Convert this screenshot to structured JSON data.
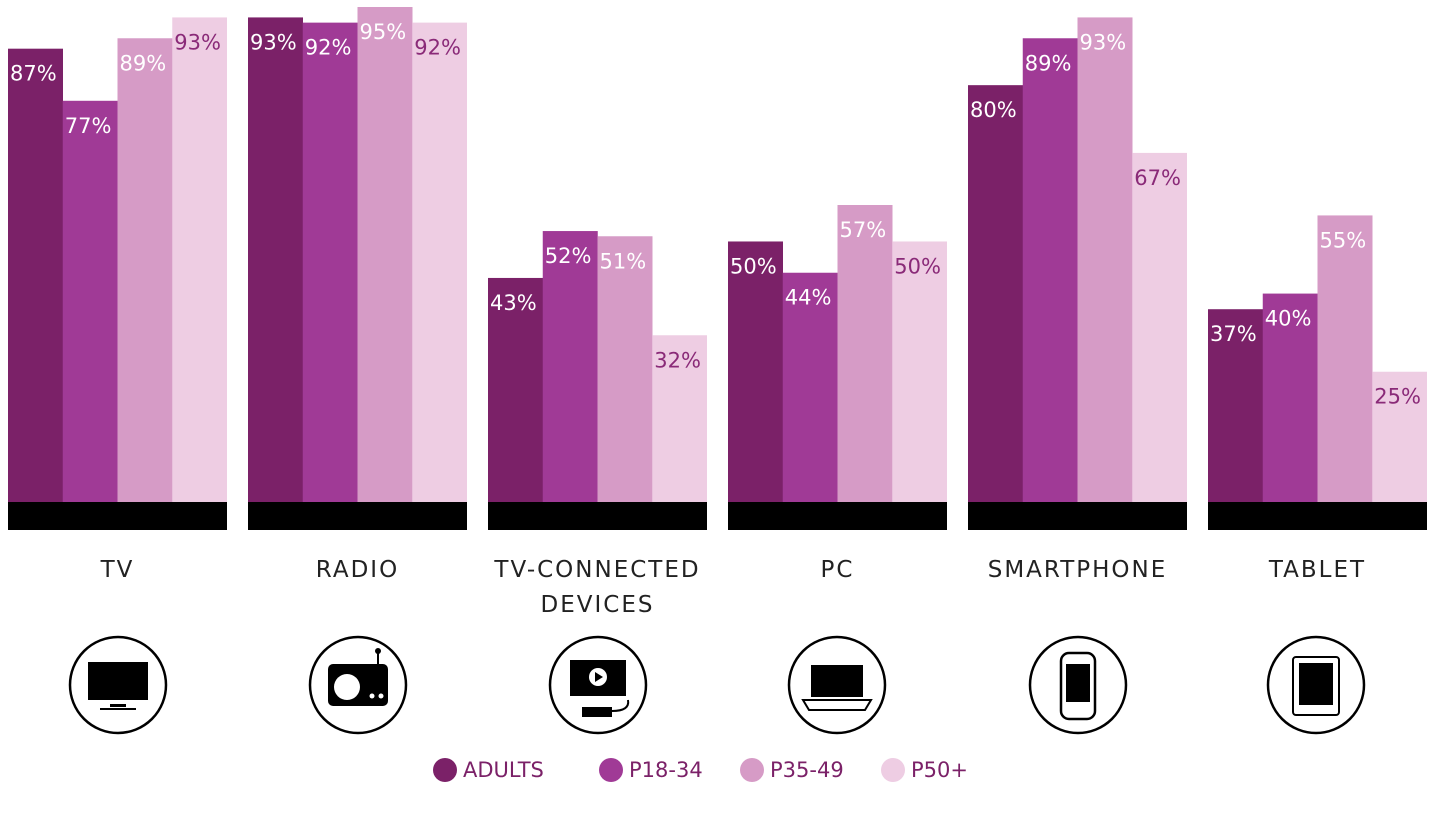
{
  "chart_data": {
    "type": "bar",
    "categories": [
      "TV",
      "RADIO",
      "TV-CONNECTED DEVICES",
      "PC",
      "SMARTPHONE",
      "TABLET"
    ],
    "series": [
      {
        "name": "ADULTS",
        "color": "#7b2168",
        "values": [
          87,
          93,
          43,
          50,
          80,
          37
        ],
        "value_labels": [
          "87%",
          "93%",
          "43%",
          "50%",
          "80%",
          "37%"
        ]
      },
      {
        "name": "P18-34",
        "color": "#a03a96",
        "values": [
          77,
          92,
          52,
          44,
          89,
          40
        ],
        "value_labels": [
          "77%",
          "92%",
          "52%",
          "44%",
          "89%",
          "40%"
        ]
      },
      {
        "name": "P35-49",
        "color": "#d69bc6",
        "values": [
          89,
          95,
          51,
          57,
          93,
          55
        ],
        "value_labels": [
          "89%",
          "95%",
          "51%",
          "57%",
          "93%",
          "55%"
        ]
      },
      {
        "name": "P50+",
        "color": "#eecde3",
        "values": [
          93,
          92,
          32,
          50,
          67,
          25
        ],
        "value_labels": [
          "93%",
          "92%",
          "32%",
          "50%",
          "67%",
          "25%"
        ]
      }
    ],
    "ylim": [
      0,
      100
    ],
    "legend": "bottom"
  }
}
